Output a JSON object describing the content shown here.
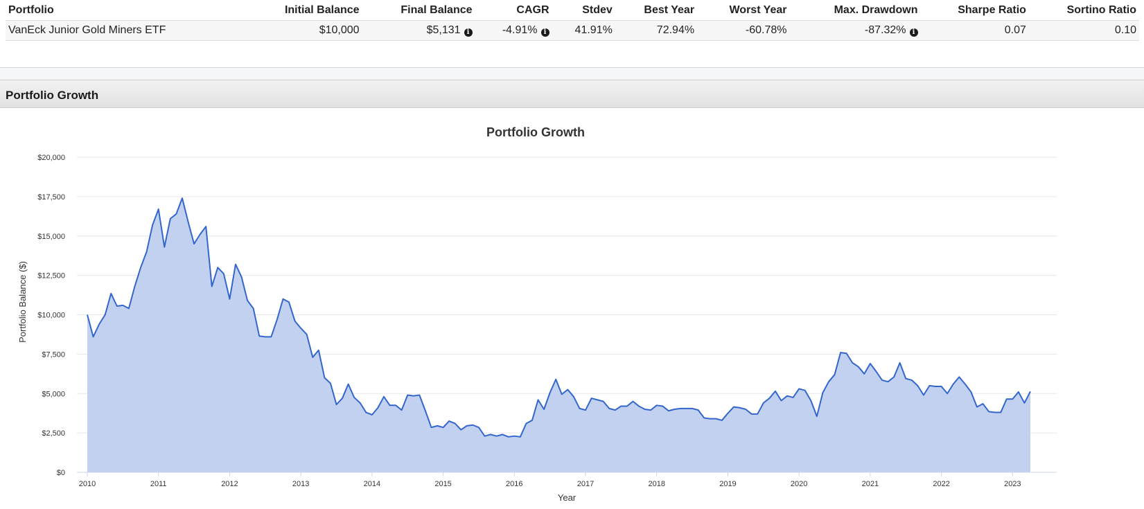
{
  "table": {
    "headers": [
      "Portfolio",
      "Initial Balance",
      "Final Balance",
      "CAGR",
      "Stdev",
      "Best Year",
      "Worst Year",
      "Max. Drawdown",
      "Sharpe Ratio",
      "Sortino Ratio"
    ],
    "row": {
      "portfolio": "VanEck Junior Gold Miners ETF",
      "initial_balance": "$10,000",
      "final_balance": "$5,131",
      "cagr": "-4.91%",
      "stdev": "41.91%",
      "best_year": "72.94%",
      "worst_year": "-60.78%",
      "max_drawdown": "-87.32%",
      "sharpe": "0.07",
      "sortino": "0.10"
    },
    "info_icon": "info-circle-icon"
  },
  "panel": {
    "title": "Portfolio Growth"
  },
  "chart_data": {
    "type": "area",
    "title": "Portfolio Growth",
    "xlabel": "Year",
    "ylabel": "Portfolio Balance ($)",
    "xlim": [
      "2010-01",
      "2023-04"
    ],
    "ylim": [
      0,
      20000
    ],
    "x_ticks": [
      "2010",
      "2011",
      "2012",
      "2013",
      "2014",
      "2015",
      "2016",
      "2017",
      "2018",
      "2019",
      "2020",
      "2021",
      "2022",
      "2023"
    ],
    "y_ticks": [
      "$0",
      "$2,500",
      "$5,000",
      "$7,500",
      "$10,000",
      "$12,500",
      "$15,000",
      "$17,500",
      "$20,000"
    ],
    "y_tick_values": [
      0,
      2500,
      5000,
      7500,
      10000,
      12500,
      15000,
      17500,
      20000
    ],
    "grid": true,
    "colors": {
      "line": "#3366cc",
      "fill": "#c2d1f0"
    },
    "series": [
      {
        "x_start": "2010-01",
        "frequency": "monthly",
        "values": [
          10000,
          8600,
          9400,
          10000,
          11350,
          10550,
          10600,
          10400,
          11800,
          13000,
          14000,
          15700,
          16700,
          14300,
          16100,
          16400,
          17400,
          15900,
          14500,
          15100,
          15600,
          11800,
          13000,
          12600,
          11000,
          13200,
          12400,
          10900,
          10400,
          8650,
          8600,
          8600,
          9700,
          11000,
          10800,
          9600,
          9150,
          8750,
          7300,
          7750,
          6000,
          5650,
          4300,
          4700,
          5600,
          4750,
          4400,
          3800,
          3650,
          4100,
          4800,
          4250,
          4250,
          3950,
          4900,
          4850,
          4900,
          3900,
          2850,
          2950,
          2850,
          3250,
          3100,
          2700,
          2950,
          3000,
          2850,
          2300,
          2400,
          2300,
          2400,
          2250,
          2300,
          2250,
          3100,
          3300,
          4600,
          4000,
          5050,
          5900,
          4950,
          5250,
          4800,
          4050,
          3950,
          4700,
          4600,
          4500,
          4050,
          3950,
          4200,
          4200,
          4500,
          4200,
          4000,
          3950,
          4250,
          4200,
          3900,
          4000,
          4050,
          4050,
          4050,
          3950,
          3450,
          3400,
          3400,
          3300,
          3750,
          4150,
          4100,
          4000,
          3700,
          3700,
          4400,
          4700,
          5150,
          4550,
          4850,
          4750,
          5300,
          5200,
          4550,
          3550,
          5050,
          5750,
          6200,
          7600,
          7550,
          6950,
          6700,
          6250,
          6900,
          6400,
          5850,
          5750,
          6050,
          6950,
          5950,
          5850,
          5500,
          4900,
          5500,
          5450,
          5450,
          5000,
          5600,
          6050,
          5600,
          5100,
          4150,
          4350,
          3850,
          3800,
          3800,
          4650,
          4650,
          5100,
          4400,
          5131
        ]
      }
    ]
  }
}
